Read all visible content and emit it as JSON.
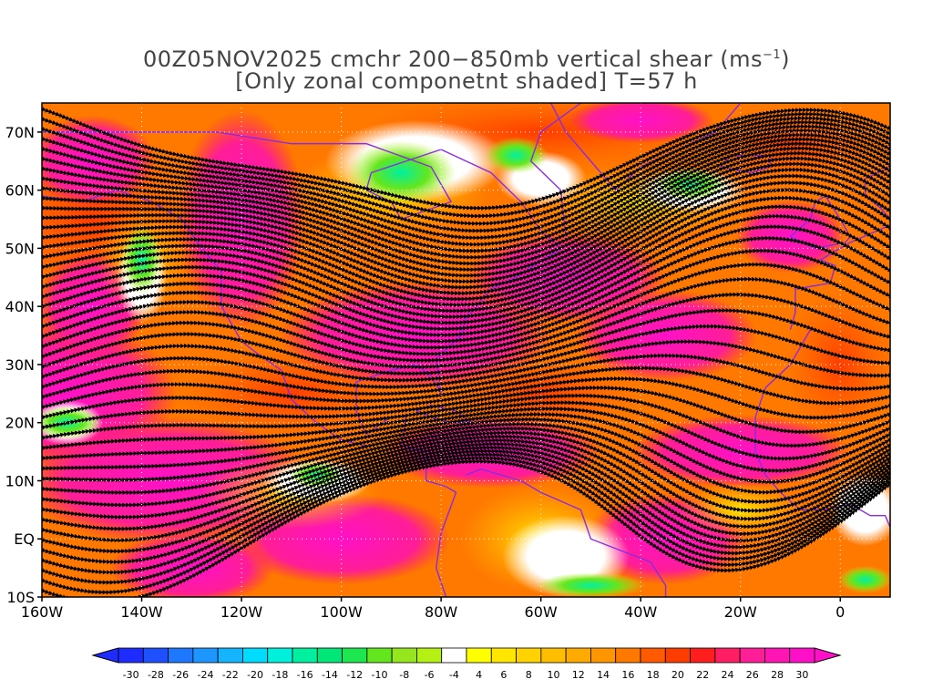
{
  "title": {
    "line1_prefix": "00Z05NOV2025 cmchr 200−850mb vertical shear (ms",
    "line1_sup": "−1",
    "line1_suffix": ")",
    "line2": "[Only zonal componetnt shaded] T=57 h"
  },
  "map": {
    "lon_range": [
      -160,
      10
    ],
    "lat_range": [
      -10,
      75
    ],
    "lat_labels": [
      {
        "lat": 70,
        "text": "70N"
      },
      {
        "lat": 60,
        "text": "60N"
      },
      {
        "lat": 50,
        "text": "50N"
      },
      {
        "lat": 40,
        "text": "40N"
      },
      {
        "lat": 30,
        "text": "30N"
      },
      {
        "lat": 20,
        "text": "20N"
      },
      {
        "lat": 10,
        "text": "10N"
      },
      {
        "lat": 0,
        "text": "EQ"
      },
      {
        "lat": -10,
        "text": "10S"
      }
    ],
    "lon_labels": [
      {
        "lon": -160,
        "text": "160W"
      },
      {
        "lon": -140,
        "text": "140W"
      },
      {
        "lon": -120,
        "text": "120W"
      },
      {
        "lon": -100,
        "text": "100W"
      },
      {
        "lon": -80,
        "text": "80W"
      },
      {
        "lon": -60,
        "text": "60W"
      },
      {
        "lon": -40,
        "text": "40W"
      },
      {
        "lon": -20,
        "text": "20W"
      },
      {
        "lon": 0,
        "text": "0"
      }
    ],
    "streamline_color": "#000000",
    "coastline_color": "#8a2be2"
  },
  "colorbar": {
    "labels": [
      "-30",
      "-28",
      "-26",
      "-24",
      "-22",
      "-20",
      "-18",
      "-16",
      "-14",
      "-12",
      "-10",
      "-8",
      "-6",
      "-4",
      "4",
      "6",
      "8",
      "10",
      "12",
      "14",
      "16",
      "18",
      "20",
      "22",
      "24",
      "26",
      "28",
      "30"
    ],
    "colors": [
      "#1e2cff",
      "#1e50ff",
      "#1e78ff",
      "#1e96ff",
      "#14b4ff",
      "#00dcff",
      "#00f0dc",
      "#00f0a0",
      "#00e678",
      "#1ee650",
      "#64e61e",
      "#96e61e",
      "#b4f014",
      "#ffffff",
      "#ffff00",
      "#ffe600",
      "#ffd200",
      "#ffbe00",
      "#ffaa00",
      "#ff9600",
      "#ff7800",
      "#ff5a00",
      "#ff3c00",
      "#ff1e1e",
      "#ff1e64",
      "#ff1e96",
      "#ff14b4",
      "#ff10c8"
    ]
  }
}
